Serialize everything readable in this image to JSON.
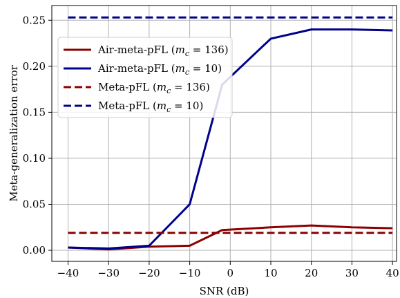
{
  "chart_data": {
    "type": "line",
    "xlabel": "SNR (dB)",
    "ylabel": "Meta-generalization error",
    "x": [
      -40,
      -30,
      -20,
      -10,
      -2,
      10,
      20,
      30,
      40
    ],
    "xlim": [
      -44,
      41
    ],
    "ylim": [
      -0.012,
      0.266
    ],
    "xticks": [
      -40,
      -30,
      -20,
      -10,
      0,
      10,
      20,
      30,
      40
    ],
    "xtick_labels": [
      "−40",
      "−30",
      "−20",
      "−10",
      "0",
      "10",
      "20",
      "30",
      "40"
    ],
    "yticks": [
      0.0,
      0.05,
      0.1,
      0.15,
      0.2,
      0.25
    ],
    "ytick_labels": [
      "0.00",
      "0.05",
      "0.10",
      "0.15",
      "0.20",
      "0.25"
    ],
    "grid": true,
    "legend_position": "upper-left",
    "series": [
      {
        "name_prefix": "Air-meta-pFL (",
        "name_var": "m",
        "name_sub": "c",
        "name_suffix": " = 136)",
        "color": "#8b0000",
        "dash": "solid",
        "values": [
          0.003,
          0.001,
          0.004,
          0.005,
          0.022,
          0.025,
          0.027,
          0.025,
          0.024
        ]
      },
      {
        "name_prefix": "Air-meta-pFL (",
        "name_var": "m",
        "name_sub": "c",
        "name_suffix": " = 10)",
        "color": "#00008b",
        "dash": "solid",
        "values": [
          0.003,
          0.002,
          0.005,
          0.05,
          0.18,
          0.23,
          0.24,
          0.24,
          0.239
        ]
      },
      {
        "name_prefix": "Meta-pFL (",
        "name_var": "m",
        "name_sub": "c",
        "name_suffix": " = 136)",
        "color": "#8b0000",
        "dash": "dashed",
        "values": [
          0.019,
          0.019,
          0.019,
          0.019,
          0.019,
          0.019,
          0.019,
          0.019,
          0.019
        ]
      },
      {
        "name_prefix": "Meta-pFL (",
        "name_var": "m",
        "name_sub": "c",
        "name_suffix": " = 10)",
        "color": "#00008b",
        "dash": "dashed",
        "values": [
          0.253,
          0.253,
          0.253,
          0.253,
          0.253,
          0.253,
          0.253,
          0.253,
          0.253
        ]
      }
    ]
  }
}
